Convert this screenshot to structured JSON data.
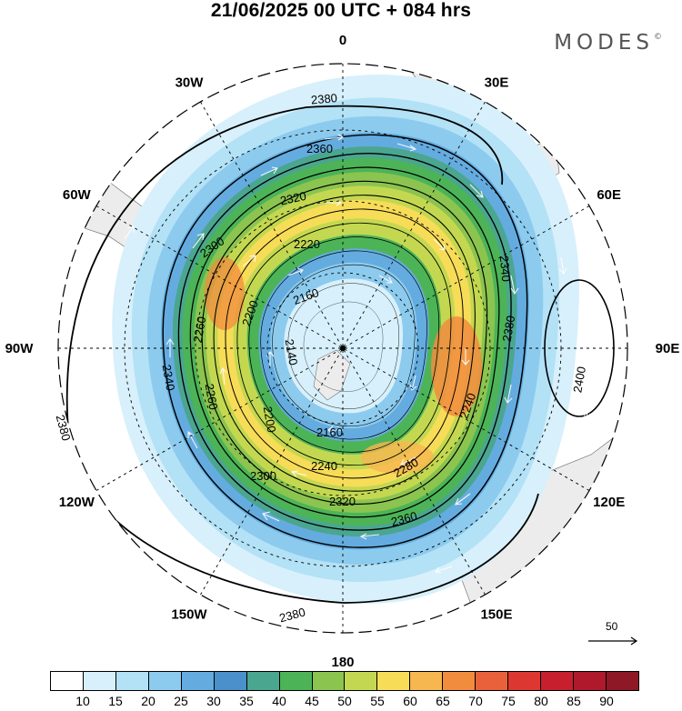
{
  "title": "21/06/2025  00 UTC  + 084 hrs",
  "brand": "MODES",
  "brand_mark": "©",
  "longitude_labels": [
    {
      "text": "0",
      "deg": 0
    },
    {
      "text": "30E",
      "deg": 30
    },
    {
      "text": "60E",
      "deg": 60
    },
    {
      "text": "90E",
      "deg": 90
    },
    {
      "text": "120E",
      "deg": 120
    },
    {
      "text": "150E",
      "deg": 150
    },
    {
      "text": "180",
      "deg": 180
    },
    {
      "text": "150W",
      "deg": 210
    },
    {
      "text": "120W",
      "deg": 240
    },
    {
      "text": "90W",
      "deg": 270
    },
    {
      "text": "60W",
      "deg": 300
    },
    {
      "text": "30W",
      "deg": 330
    }
  ],
  "contour_labels": [
    "2380",
    "2360",
    "2320",
    "2300",
    "2220",
    "2160",
    "2140",
    "2200",
    "2260",
    "2340",
    "2240",
    "2280",
    "2300",
    "2320",
    "2360",
    "2380",
    "2380",
    "2400",
    "2380",
    "2340",
    "2240",
    "2260",
    "2200",
    "2160"
  ],
  "colorbar": {
    "colors": [
      "#ffffff",
      "#d7f0fb",
      "#b3e1f6",
      "#8ccbee",
      "#64acdf",
      "#4b8fcb",
      "#4aa68f",
      "#4cb457",
      "#8bc44f",
      "#c3d850",
      "#f7dc58",
      "#f6b650",
      "#f18c3e",
      "#e9613a",
      "#dd3732",
      "#c71f2e",
      "#ae1a2b",
      "#8e1825"
    ],
    "ticks": [
      "10",
      "15",
      "20",
      "25",
      "30",
      "35",
      "40",
      "45",
      "50",
      "55",
      "60",
      "65",
      "70",
      "75",
      "80",
      "85",
      "90"
    ]
  },
  "reference_vector": "50"
}
